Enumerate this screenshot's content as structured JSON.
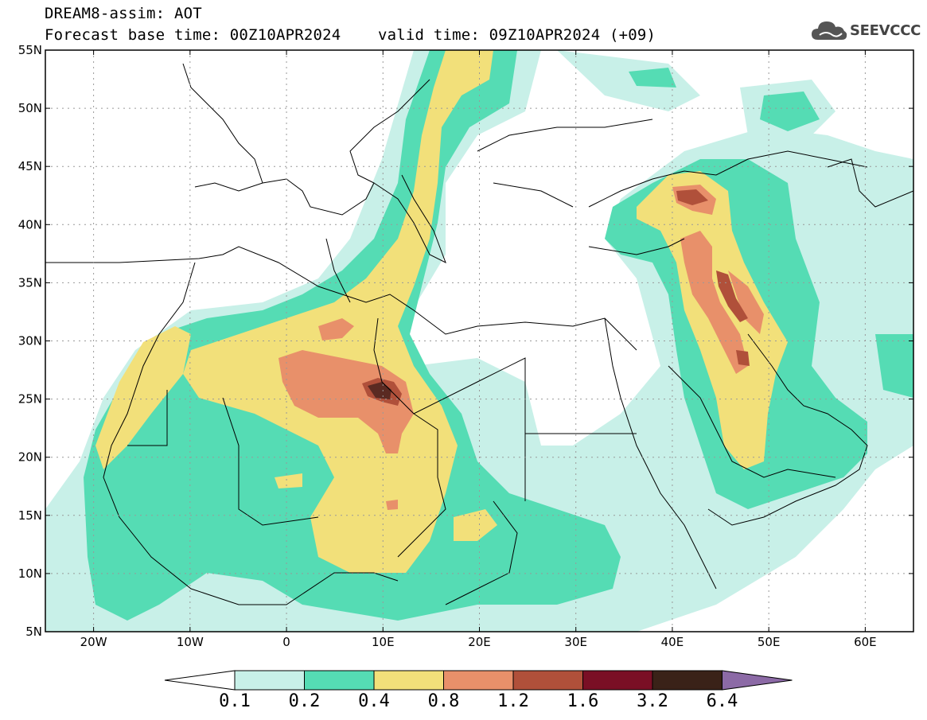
{
  "header": {
    "title_line1": "DREAM8-assim: AOT",
    "title_line2": "Forecast base time: 00Z10APR2024    valid time: 09Z10APR2024 (+09)"
  },
  "logo": {
    "text": "SEEVCCC",
    "icon": "cloud-icon"
  },
  "map": {
    "lat_labels": [
      "55N",
      "50N",
      "45N",
      "40N",
      "35N",
      "30N",
      "25N",
      "20N",
      "15N",
      "10N",
      "5N"
    ],
    "lon_labels": [
      "20W",
      "10W",
      "0",
      "10E",
      "20E",
      "30E",
      "40E",
      "50E",
      "60E"
    ],
    "extent": {
      "lon_min": -25,
      "lon_max": 65,
      "lat_min": 5,
      "lat_max": 55
    }
  },
  "colorbar": {
    "labels": [
      "0.1",
      "0.2",
      "0.4",
      "0.8",
      "1.2",
      "1.6",
      "3.2",
      "6.4"
    ],
    "colors": [
      "#c8f0e8",
      "#55dcb4",
      "#f2e07a",
      "#e8906a",
      "#b0503a",
      "#7a0f25",
      "#3a2218",
      "#8c6aa6"
    ]
  }
}
